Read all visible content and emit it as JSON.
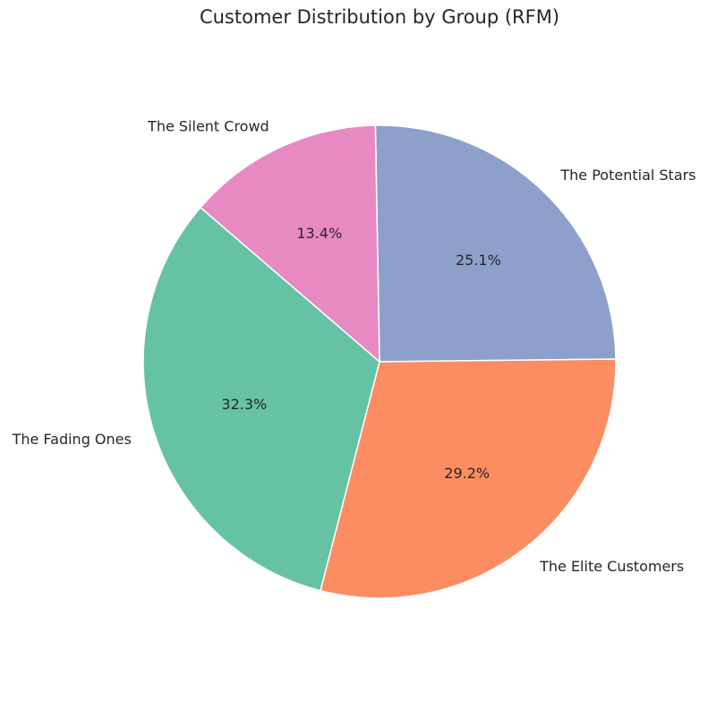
{
  "chart_data": {
    "type": "pie",
    "title": "Customer Distribution by Group (RFM)",
    "slices": [
      {
        "label": "The Potential Stars",
        "value": 25.1,
        "pct_label": "25.1%",
        "color": "#8da0cb"
      },
      {
        "label": "The Elite Customers",
        "value": 29.2,
        "pct_label": "29.2%",
        "color": "#fc8d62"
      },
      {
        "label": "The Fading Ones",
        "value": 32.3,
        "pct_label": "32.3%",
        "color": "#66c2a5"
      },
      {
        "label": "The Silent Crowd",
        "value": 13.4,
        "pct_label": "13.4%",
        "color": "#e78ac3"
      }
    ],
    "legend": "none",
    "grid": false
  }
}
